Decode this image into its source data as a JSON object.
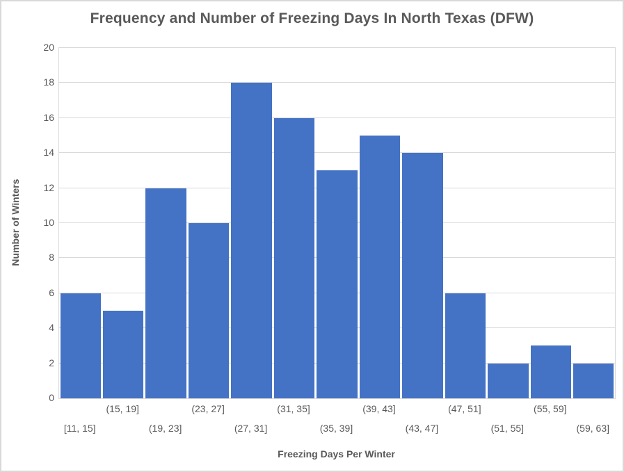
{
  "chart_data": {
    "type": "bar",
    "title": "Frequency and Number of Freezing Days In North Texas (DFW)",
    "xlabel": "Freezing Days Per Winter",
    "ylabel": "Number of Winters",
    "categories": [
      "[11, 15]",
      "(15, 19]",
      "(19, 23]",
      "(23, 27]",
      "(27, 31]",
      "(31, 35]",
      "(35, 39]",
      "(39, 43]",
      "(43, 47]",
      "(47, 51]",
      "(51, 55]",
      "(55, 59]",
      "(59, 63]"
    ],
    "values": [
      6,
      5,
      12,
      10,
      18,
      16,
      13,
      15,
      14,
      6,
      2,
      3,
      2
    ],
    "ylim": [
      0,
      20
    ],
    "ytick_step": 2,
    "yticks": [
      0,
      2,
      4,
      6,
      8,
      10,
      12,
      14,
      16,
      18,
      20
    ],
    "grid": true,
    "legend_position": "none",
    "x_label_layout": "staggered-two-rows",
    "colors": {
      "bar": "#4472C4",
      "grid": "#d9d9d9",
      "axis_border": "#d9d9d9",
      "text": "#595959",
      "background": "#ffffff",
      "chart_border": "#d9d9d9"
    }
  }
}
